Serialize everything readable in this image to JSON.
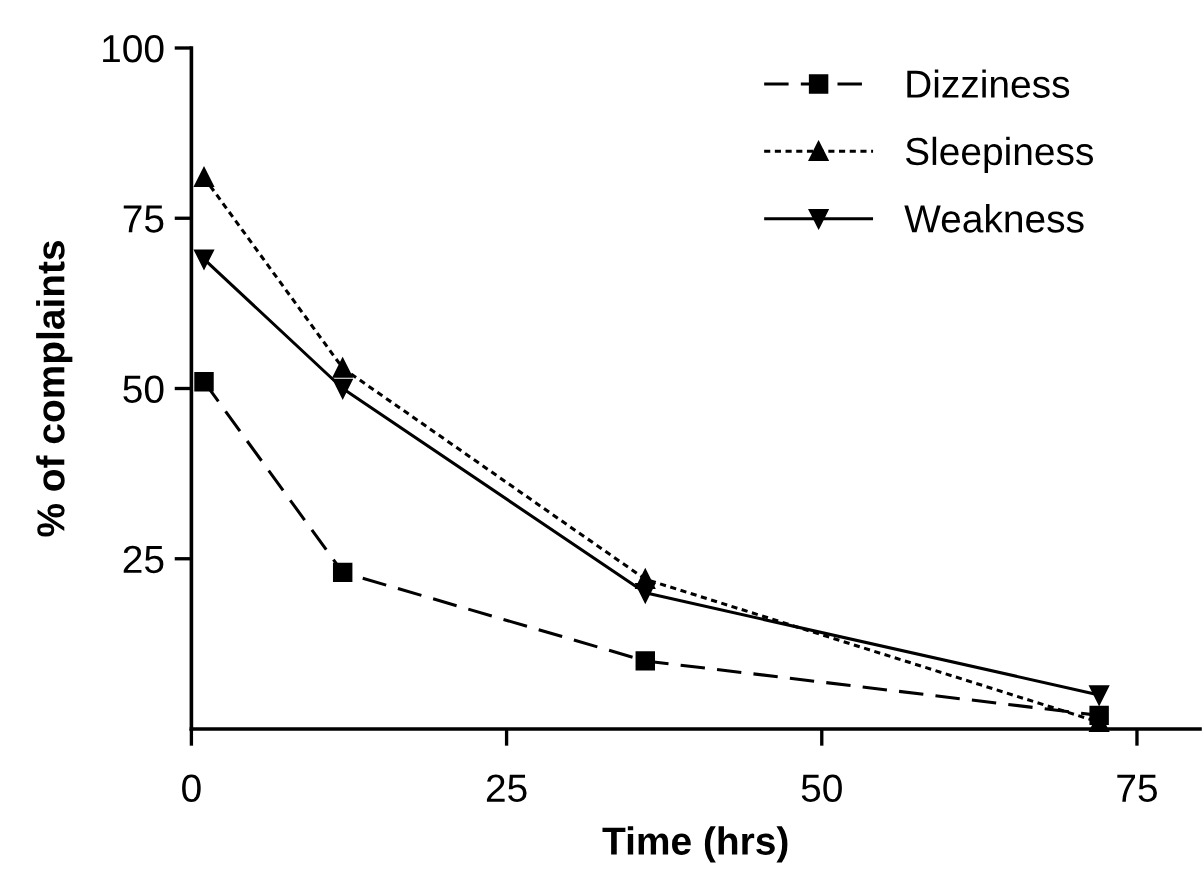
{
  "chart_data": {
    "type": "line",
    "xlabel": "Time (hrs)",
    "ylabel": "% of complaints",
    "x": [
      1,
      12,
      36,
      72
    ],
    "series": [
      {
        "name": "Dizziness",
        "color": "#000000",
        "values": [
          51,
          23,
          10,
          2
        ],
        "marker": "square",
        "line_style": "dashed"
      },
      {
        "name": "Sleepiness",
        "color": "#000000",
        "values": [
          81,
          53,
          22,
          1
        ],
        "marker": "triangle",
        "line_style": "dotted"
      },
      {
        "name": "Weakness",
        "color": "#000000",
        "values": [
          69,
          50,
          20,
          5
        ],
        "marker": "triangle_down",
        "line_style": "solid"
      }
    ],
    "xlim": [
      0,
      80
    ],
    "ylim": [
      0,
      100
    ],
    "xticks": [
      0,
      25,
      50,
      75
    ],
    "yticks": [
      25,
      50,
      75,
      100
    ],
    "grid": false,
    "legend": "top right"
  }
}
